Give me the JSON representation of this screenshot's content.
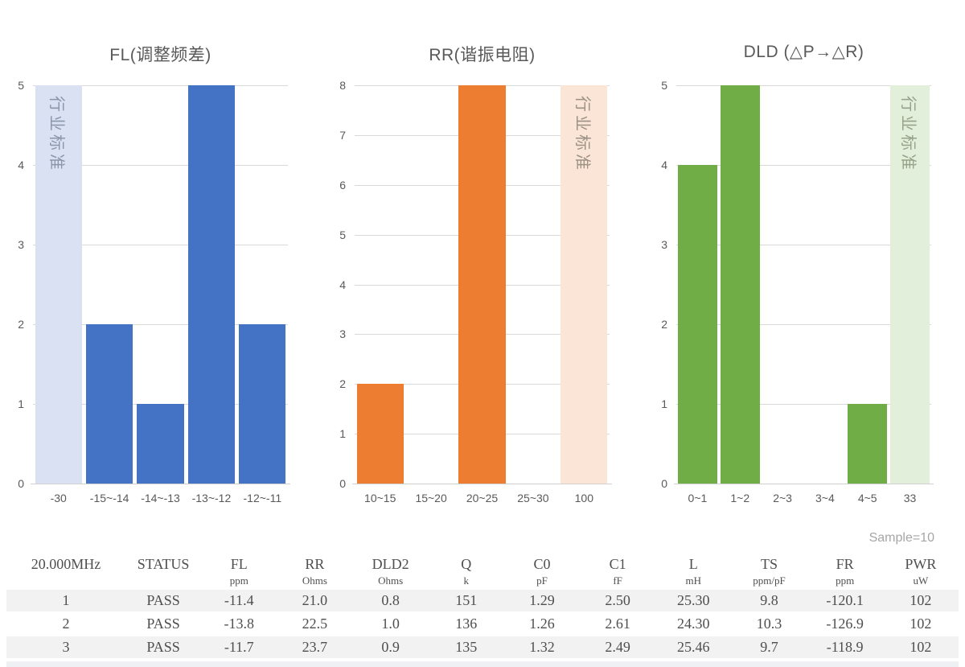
{
  "chart_data": [
    {
      "type": "bar",
      "title": "FL(调整频差)",
      "categories": [
        "-30",
        "-15~-14",
        "-14~-13",
        "-13~-12",
        "-12~-11"
      ],
      "values": [
        null,
        2,
        1,
        5,
        2
      ],
      "ymax": 5,
      "yticks": [
        0,
        1,
        2,
        3,
        4,
        5
      ],
      "bar_color": "#4472C4",
      "grid": true,
      "standard_band": {
        "band_index": 0,
        "label": "行业标准",
        "color": "#D9E1F2",
        "label_color": "#8b96a9"
      }
    },
    {
      "type": "bar",
      "title": "RR(谐振电阻)",
      "categories": [
        "10~15",
        "15~20",
        "20~25",
        "25~30",
        "100"
      ],
      "values": [
        2,
        0,
        8,
        0,
        null
      ],
      "ymax": 8,
      "yticks": [
        0,
        1,
        2,
        3,
        4,
        5,
        6,
        7,
        8
      ],
      "bar_color": "#ED7D31",
      "grid": true,
      "standard_band": {
        "band_index": 4,
        "label": "行业标准",
        "color": "#FBE5D6",
        "label_color": "#9b9186"
      }
    },
    {
      "type": "bar",
      "title": "DLD (△P→△R)",
      "categories": [
        "0~1",
        "1~2",
        "2~3",
        "3~4",
        "4~5",
        "33"
      ],
      "values": [
        4,
        5,
        0,
        0,
        1,
        null
      ],
      "ymax": 5,
      "yticks": [
        0,
        1,
        2,
        3,
        4,
        5
      ],
      "bar_color": "#70AD47",
      "grid": true,
      "standard_band": {
        "band_index": 5,
        "label": "行业标准",
        "color": "#E2EFDA",
        "label_color": "#97a18a"
      }
    }
  ],
  "table": {
    "sample_label": "Sample=10",
    "columns": [
      {
        "name": "20.000MHz",
        "unit": ""
      },
      {
        "name": "STATUS",
        "unit": ""
      },
      {
        "name": "FL",
        "unit": "ppm"
      },
      {
        "name": "RR",
        "unit": "Ohms"
      },
      {
        "name": "DLD2",
        "unit": "Ohms"
      },
      {
        "name": "Q",
        "unit": "k"
      },
      {
        "name": "C0",
        "unit": "pF"
      },
      {
        "name": "C1",
        "unit": "fF"
      },
      {
        "name": "L",
        "unit": "mH"
      },
      {
        "name": "TS",
        "unit": "ppm/pF"
      },
      {
        "name": "FR",
        "unit": "ppm"
      },
      {
        "name": "PWR",
        "unit": "uW"
      }
    ],
    "rows": [
      [
        "1",
        "PASS",
        "-11.4",
        "21.0",
        "0.8",
        "151",
        "1.29",
        "2.50",
        "25.30",
        "9.8",
        "-120.1",
        "102"
      ],
      [
        "2",
        "PASS",
        "-13.8",
        "22.5",
        "1.0",
        "136",
        "1.26",
        "2.61",
        "24.30",
        "10.3",
        "-126.9",
        "102"
      ],
      [
        "3",
        "PASS",
        "-11.7",
        "23.7",
        "0.9",
        "135",
        "1.32",
        "2.49",
        "25.46",
        "9.7",
        "-118.9",
        "102"
      ]
    ],
    "colors": {
      "stripe": "#f2f2f2",
      "text": "#4f4f4f",
      "sample_label": "#a6a6a6"
    }
  }
}
